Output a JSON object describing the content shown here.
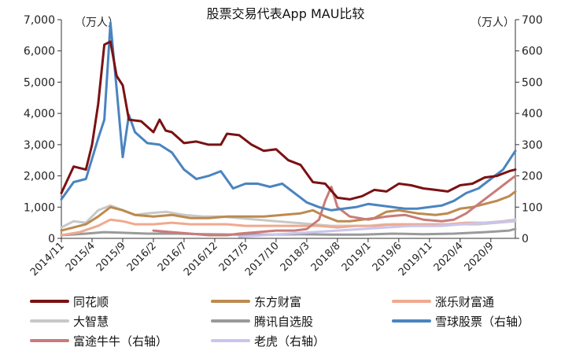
{
  "chart_data": {
    "type": "line",
    "title": "股票交易代表App MAU比较",
    "left_unit": "（万人）",
    "right_unit": "（万人）",
    "y_left": {
      "min": 0,
      "max": 7000,
      "ticks": [
        0,
        1000,
        2000,
        3000,
        4000,
        5000,
        6000,
        7000
      ],
      "tick_labels": [
        "0",
        "1,000",
        "2,000",
        "3,000",
        "4,000",
        "5,000",
        "6,000",
        "7,000"
      ]
    },
    "y_right": {
      "min": 0,
      "max": 700,
      "ticks": [
        0,
        100,
        200,
        300,
        400,
        500,
        600,
        700
      ],
      "tick_labels": [
        "0",
        "100",
        "200",
        "300",
        "400",
        "500",
        "600",
        "700"
      ]
    },
    "x_tick_labels": [
      "2014/11",
      "2015/4",
      "2015/9",
      "2016/2",
      "2016/7",
      "2016/12",
      "2017/5",
      "2017/10",
      "2018/3",
      "2018/8",
      "2019/1",
      "2019/6",
      "2019/11",
      "2020/4",
      "2020/9"
    ],
    "grid": false,
    "legend_position": "bottom",
    "series": [
      {
        "name": "同花顺",
        "axis": "left",
        "color": "#7b1113",
        "x": [
          "2014/11",
          "2015/1",
          "2015/3",
          "2015/4",
          "2015/5",
          "2015/6",
          "2015/7",
          "2015/8",
          "2015/9",
          "2015/10",
          "2015/12",
          "2016/2",
          "2016/3",
          "2016/4",
          "2016/5",
          "2016/7",
          "2016/9",
          "2016/11",
          "2017/1",
          "2017/2",
          "2017/4",
          "2017/6",
          "2017/8",
          "2017/10",
          "2017/12",
          "2018/2",
          "2018/4",
          "2018/6",
          "2018/8",
          "2018/10",
          "2018/12",
          "2019/2",
          "2019/4",
          "2019/6",
          "2019/8",
          "2019/10",
          "2019/12",
          "2020/2",
          "2020/4",
          "2020/6",
          "2020/8",
          "2020/10",
          "2020/12",
          "2021/1"
        ],
        "values": [
          1450,
          2300,
          2200,
          3000,
          4300,
          6200,
          6300,
          5200,
          4900,
          3800,
          3750,
          3400,
          3800,
          3450,
          3400,
          3050,
          3100,
          3000,
          3000,
          3350,
          3300,
          3000,
          2800,
          2850,
          2500,
          2350,
          1800,
          1750,
          1300,
          1250,
          1350,
          1550,
          1500,
          1750,
          1700,
          1600,
          1550,
          1500,
          1700,
          1750,
          1950,
          2000,
          2150,
          2200
        ]
      },
      {
        "name": "东方财富",
        "axis": "left",
        "color": "#bd8a4f",
        "x": [
          "2014/11",
          "2015/1",
          "2015/3",
          "2015/5",
          "2015/7",
          "2015/9",
          "2015/11",
          "2016/2",
          "2016/5",
          "2016/8",
          "2016/11",
          "2017/2",
          "2017/5",
          "2017/8",
          "2017/11",
          "2018/2",
          "2018/4",
          "2018/6",
          "2018/8",
          "2018/10",
          "2018/12",
          "2019/2",
          "2019/4",
          "2019/6",
          "2019/9",
          "2019/12",
          "2020/2",
          "2020/4",
          "2020/6",
          "2020/8",
          "2020/10",
          "2020/12",
          "2021/1"
        ],
        "values": [
          250,
          350,
          450,
          700,
          1000,
          900,
          750,
          700,
          750,
          650,
          650,
          700,
          700,
          700,
          750,
          800,
          900,
          700,
          550,
          550,
          600,
          650,
          850,
          900,
          800,
          750,
          800,
          950,
          1000,
          1100,
          1200,
          1350,
          1500
        ]
      },
      {
        "name": "涨乐财富通",
        "axis": "left",
        "color": "#f0a98e",
        "x": [
          "2014/11",
          "2015/2",
          "2015/5",
          "2015/7",
          "2015/9",
          "2015/11",
          "2016/2",
          "2016/5",
          "2016/8",
          "2016/11",
          "2017/2",
          "2017/5",
          "2017/8",
          "2017/11",
          "2018/2",
          "2018/5",
          "2018/8",
          "2018/11",
          "2019/2",
          "2019/5",
          "2019/8",
          "2019/11",
          "2020/2",
          "2020/5",
          "2020/8",
          "2020/11",
          "2021/1"
        ],
        "values": [
          100,
          200,
          400,
          600,
          550,
          450,
          450,
          500,
          450,
          450,
          450,
          400,
          400,
          400,
          400,
          400,
          350,
          400,
          400,
          450,
          450,
          450,
          450,
          500,
          500,
          550,
          600
        ]
      },
      {
        "name": "大智慧",
        "axis": "left",
        "color": "#c8c8c8",
        "x": [
          "2014/11",
          "2015/1",
          "2015/3",
          "2015/5",
          "2015/7",
          "2015/9",
          "2015/11",
          "2016/1",
          "2016/4",
          "2016/7",
          "2016/10",
          "2017/1",
          "2017/4",
          "2017/7",
          "2017/10",
          "2018/1",
          "2018/4",
          "2018/7",
          "2018/10",
          "2019/1",
          "2019/4",
          "2019/7",
          "2019/10",
          "2020/1",
          "2020/4",
          "2020/7",
          "2020/10",
          "2021/1"
        ],
        "values": [
          350,
          550,
          500,
          900,
          1050,
          900,
          750,
          800,
          850,
          750,
          700,
          700,
          650,
          600,
          550,
          500,
          450,
          400,
          400,
          400,
          450,
          400,
          400,
          400,
          450,
          450,
          500,
          550
        ]
      },
      {
        "name": "腾讯自选股",
        "axis": "left",
        "color": "#9a9a9a",
        "x": [
          "2014/11",
          "2015/3",
          "2015/6",
          "2015/9",
          "2016/1",
          "2016/6",
          "2016/11",
          "2017/4",
          "2017/9",
          "2018/2",
          "2018/7",
          "2018/12",
          "2019/5",
          "2019/10",
          "2020/3",
          "2020/8",
          "2020/12",
          "2021/1"
        ],
        "values": [
          100,
          150,
          200,
          180,
          150,
          150,
          130,
          120,
          120,
          130,
          120,
          120,
          150,
          130,
          150,
          200,
          250,
          300
        ]
      },
      {
        "name": "雪球股票（右轴）",
        "axis": "right",
        "color": "#4a84c0",
        "x": [
          "2014/11",
          "2015/1",
          "2015/3",
          "2015/5",
          "2015/6",
          "2015/7",
          "2015/8",
          "2015/9",
          "2015/10",
          "2015/11",
          "2016/1",
          "2016/3",
          "2016/5",
          "2016/7",
          "2016/9",
          "2016/11",
          "2017/1",
          "2017/3",
          "2017/5",
          "2017/7",
          "2017/9",
          "2017/11",
          "2018/1",
          "2018/3",
          "2018/5",
          "2018/7",
          "2018/9",
          "2018/11",
          "2019/1",
          "2019/3",
          "2019/5",
          "2019/7",
          "2019/9",
          "2019/11",
          "2020/1",
          "2020/3",
          "2020/5",
          "2020/7",
          "2020/9",
          "2020/11",
          "2021/1"
        ],
        "values": [
          125,
          180,
          190,
          320,
          380,
          690,
          480,
          260,
          395,
          340,
          305,
          300,
          275,
          220,
          190,
          200,
          215,
          160,
          175,
          175,
          165,
          175,
          145,
          115,
          100,
          90,
          95,
          100,
          110,
          105,
          100,
          95,
          95,
          100,
          105,
          120,
          145,
          160,
          190,
          220,
          280
        ]
      },
      {
        "name": "富途牛牛（右轴）",
        "axis": "right",
        "color": "#c97b79",
        "x": [
          "2016/2",
          "2016/5",
          "2016/8",
          "2016/11",
          "2017/2",
          "2017/4",
          "2017/7",
          "2017/10",
          "2018/1",
          "2018/3",
          "2018/5",
          "2018/6",
          "2018/7",
          "2018/8",
          "2018/10",
          "2019/1",
          "2019/4",
          "2019/7",
          "2019/10",
          "2020/1",
          "2020/3",
          "2020/5",
          "2020/7",
          "2020/9",
          "2020/11",
          "2021/1"
        ],
        "values": [
          25,
          20,
          15,
          10,
          10,
          15,
          20,
          25,
          25,
          30,
          60,
          120,
          165,
          100,
          70,
          60,
          70,
          75,
          60,
          55,
          60,
          80,
          110,
          140,
          170,
          200
        ]
      },
      {
        "name": "老虎（右轴）",
        "axis": "right",
        "color": "#c9c5ee",
        "x": [
          "2017/4",
          "2017/8",
          "2017/12",
          "2018/4",
          "2018/8",
          "2018/12",
          "2019/4",
          "2019/8",
          "2019/12",
          "2020/4",
          "2020/8",
          "2020/12",
          "2021/1"
        ],
        "values": [
          5,
          10,
          15,
          20,
          25,
          30,
          35,
          40,
          40,
          45,
          50,
          55,
          60
        ]
      }
    ]
  }
}
